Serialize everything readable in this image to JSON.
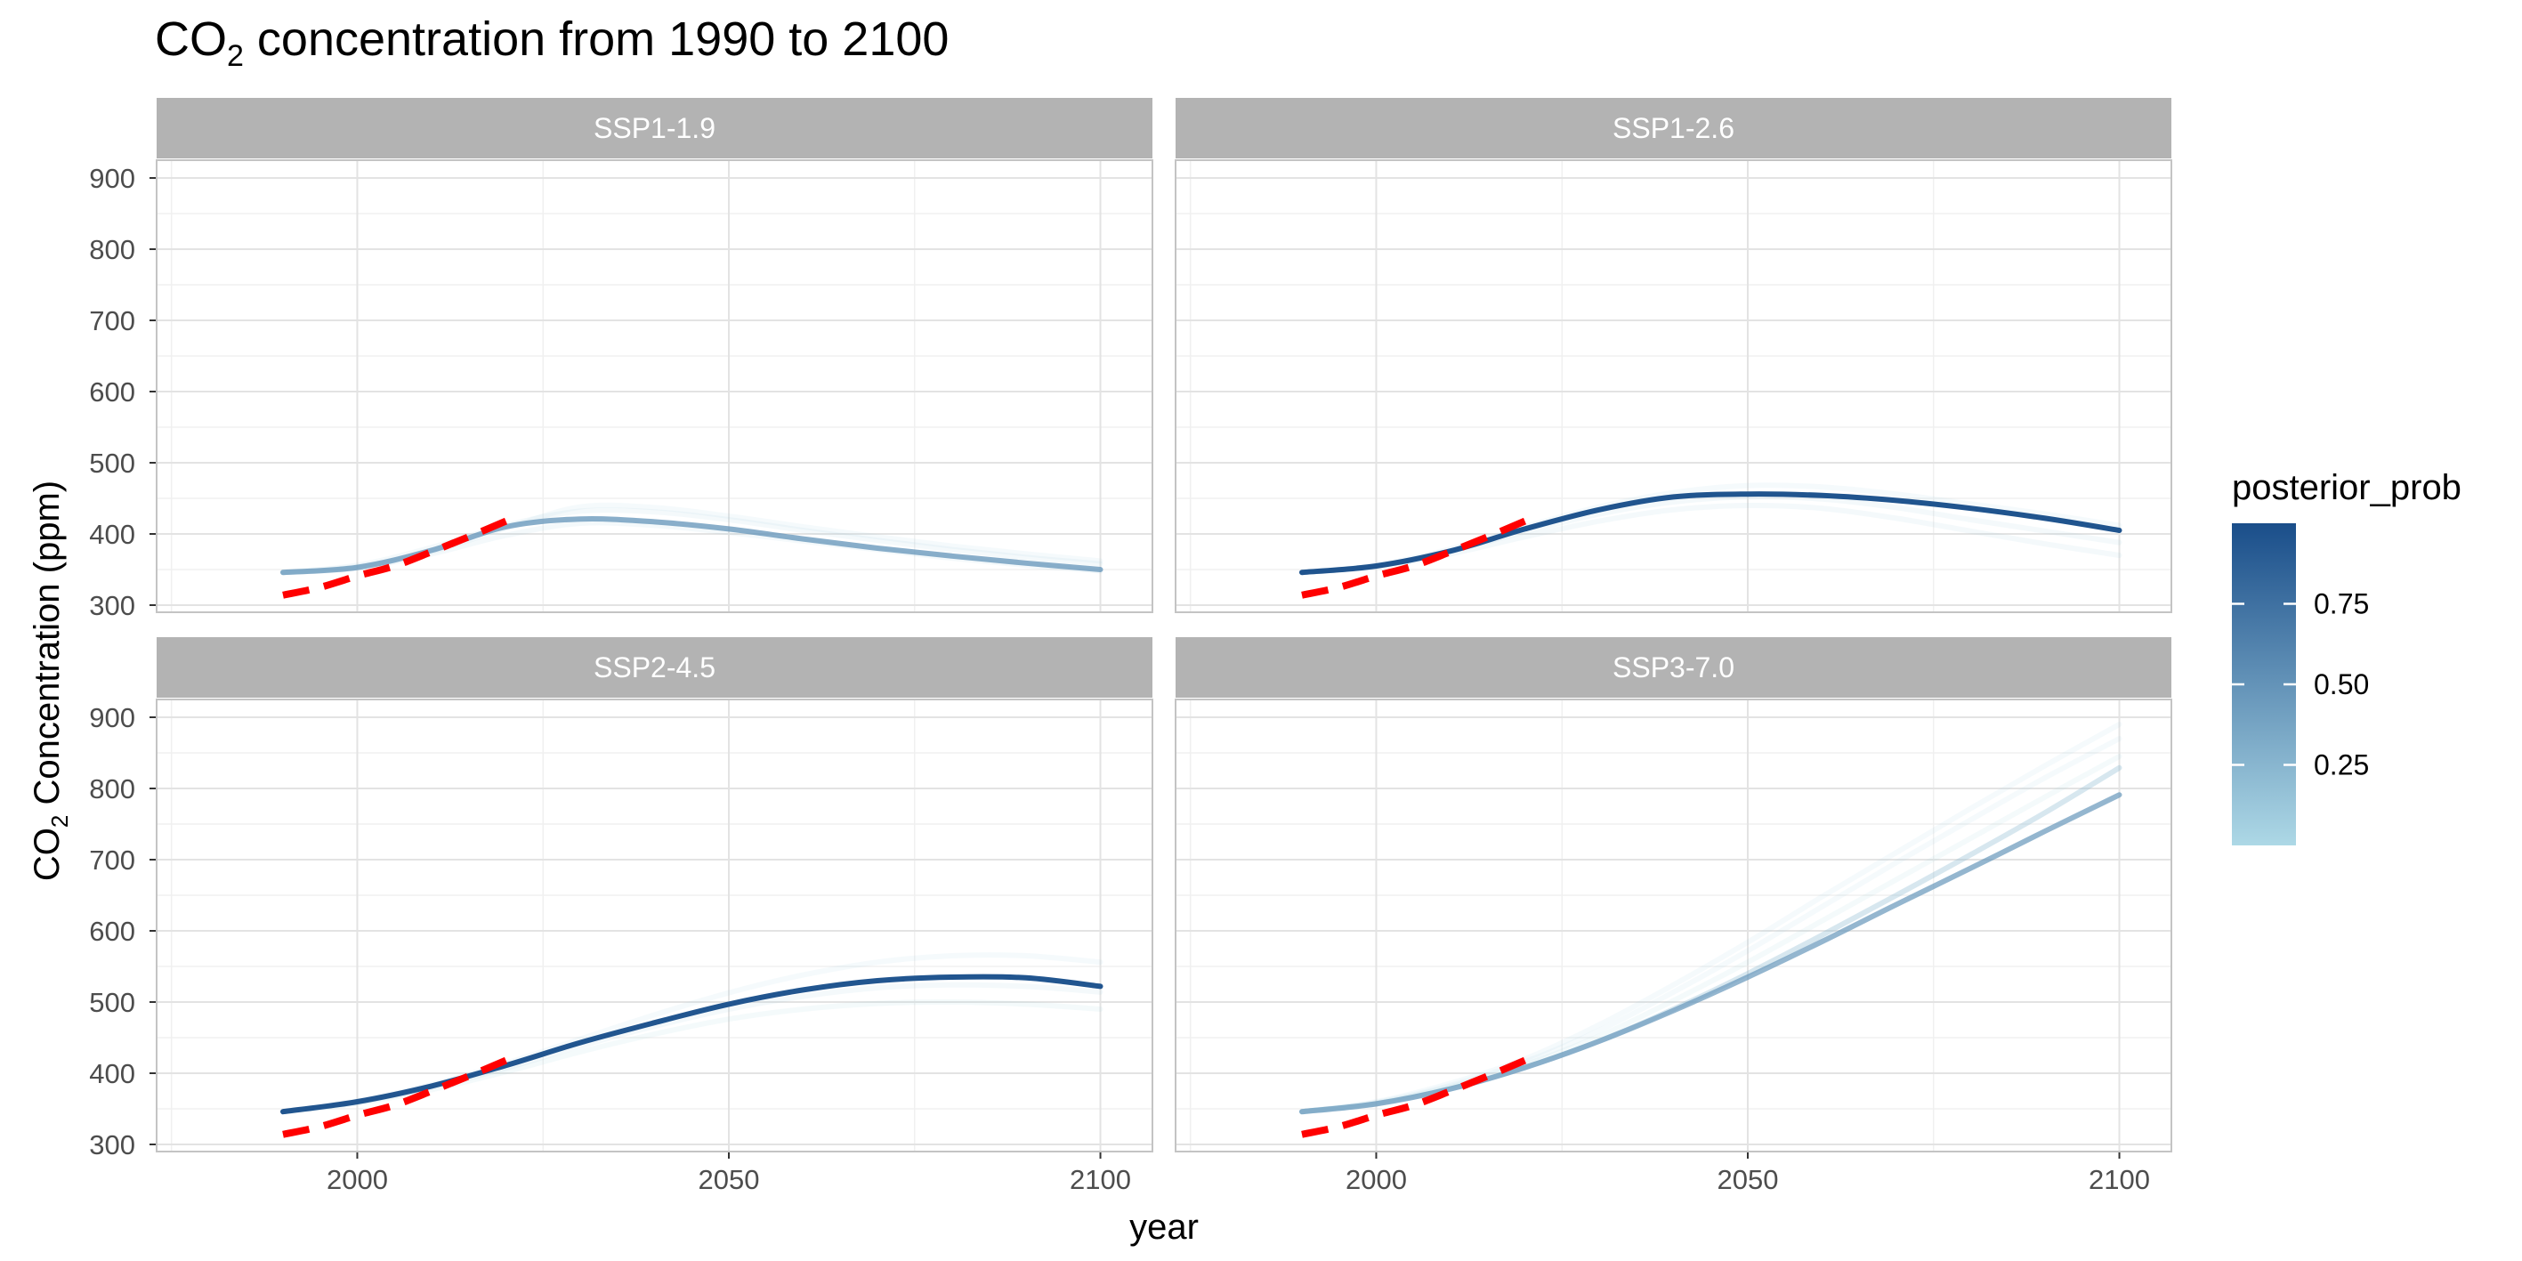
{
  "chart_data": {
    "type": "line",
    "title": {
      "prefix": "CO",
      "subscript": "2",
      "suffix": " concentration from 1990 to 2100"
    },
    "xlabel": "year",
    "ylabel": {
      "prefix": "CO",
      "subscript": "2",
      "suffix": " Concentration (ppm)"
    },
    "xlim": [
      1973,
      2107
    ],
    "ylim": [
      290,
      925
    ],
    "x_ticks": [
      2000,
      2050,
      2100
    ],
    "x_minor_ticks": [
      1975,
      2025,
      2075
    ],
    "y_ticks": [
      300,
      400,
      500,
      600,
      700,
      800,
      900
    ],
    "y_minor_ticks": [
      350,
      450,
      550,
      650,
      750,
      850
    ],
    "grid": true,
    "legend": {
      "title": "posterior_prob",
      "position": "right",
      "type": "colorbar",
      "range": [
        0.0,
        1.0
      ],
      "ticks": [
        0.25,
        0.5,
        0.75
      ],
      "tick_labels": [
        "0.25",
        "0.50",
        "0.75"
      ],
      "low_color": "#add8e6",
      "high_color": "#1a4e8a"
    },
    "observed_style": {
      "color": "#ff0000",
      "dash": "dashed"
    },
    "panels": [
      {
        "label": "SSP1-1.9",
        "observed": {
          "x": [
            1990,
            1995,
            2000,
            2005,
            2010,
            2015,
            2020
          ],
          "y": [
            314,
            325,
            341,
            355,
            375,
            396,
            418
          ]
        },
        "series": [
          {
            "posterior_prob": 0.03,
            "x": [
              1990,
              2000,
              2010,
              2020,
              2030,
              2040,
              2050,
              2060,
              2070,
              2080,
              2090,
              2100
            ],
            "y": [
              346,
              354,
              375,
              408,
              438,
              437,
              425,
              410,
              396,
              383,
              372,
              362
            ]
          },
          {
            "posterior_prob": 0.06,
            "x": [
              1990,
              2000,
              2010,
              2020,
              2030,
              2040,
              2050,
              2060,
              2070,
              2080,
              2090,
              2100
            ],
            "y": [
              346,
              356,
              381,
              412,
              432,
              431,
              420,
              405,
              391,
              378,
              367,
              358
            ]
          },
          {
            "posterior_prob": 0.06,
            "x": [
              1990,
              2000,
              2010,
              2020,
              2030,
              2040,
              2050,
              2060,
              2070,
              2080,
              2090,
              2100
            ],
            "y": [
              346,
              352,
              372,
              398,
              415,
              412,
              402,
              390,
              378,
              366,
              356,
              348
            ]
          },
          {
            "posterior_prob": 0.48,
            "x": [
              1990,
              2000,
              2010,
              2020,
              2030,
              2040,
              2050,
              2060,
              2070,
              2080,
              2090,
              2100
            ],
            "y": [
              346,
              353,
              377,
              410,
              421,
              417,
              407,
              393,
              380,
              369,
              359,
              350
            ]
          }
        ]
      },
      {
        "label": "SSP1-2.6",
        "observed": {
          "x": [
            1990,
            1995,
            2000,
            2005,
            2010,
            2015,
            2020
          ],
          "y": [
            314,
            325,
            341,
            355,
            375,
            396,
            418
          ]
        },
        "series": [
          {
            "posterior_prob": 0.03,
            "x": [
              1990,
              2000,
              2010,
              2020,
              2030,
              2040,
              2050,
              2060,
              2070,
              2080,
              2090,
              2100
            ],
            "y": [
              346,
              356,
              379,
              410,
              438,
              458,
              468,
              466,
              456,
              442,
              428,
              412
            ]
          },
          {
            "posterior_prob": 0.05,
            "x": [
              1990,
              2000,
              2010,
              2020,
              2030,
              2040,
              2050,
              2060,
              2070,
              2080,
              2090,
              2100
            ],
            "y": [
              346,
              354,
              372,
              396,
              418,
              434,
              440,
              436,
              422,
              404,
              386,
              370
            ]
          },
          {
            "posterior_prob": 0.06,
            "x": [
              1990,
              2000,
              2010,
              2020,
              2030,
              2040,
              2050,
              2060,
              2070,
              2080,
              2090,
              2100
            ],
            "y": [
              346,
              355,
              376,
              403,
              428,
              445,
              452,
              449,
              437,
              420,
              404,
              388
            ]
          },
          {
            "posterior_prob": 0.96,
            "x": [
              1990,
              2000,
              2010,
              2020,
              2030,
              2040,
              2050,
              2060,
              2070,
              2080,
              2090,
              2100
            ],
            "y": [
              346,
              355,
              376,
              407,
              434,
              452,
              456,
              454,
              447,
              436,
              422,
              405
            ]
          }
        ]
      },
      {
        "label": "SSP2-4.5",
        "observed": {
          "x": [
            1990,
            1995,
            2000,
            2005,
            2010,
            2015,
            2020
          ],
          "y": [
            314,
            325,
            341,
            355,
            375,
            396,
            418
          ]
        },
        "series": [
          {
            "posterior_prob": 0.03,
            "x": [
              1990,
              2000,
              2010,
              2020,
              2030,
              2040,
              2050,
              2060,
              2070,
              2080,
              2090,
              2100
            ],
            "y": [
              346,
              361,
              384,
              414,
              448,
              482,
              513,
              538,
              556,
              565,
              565,
              556
            ]
          },
          {
            "posterior_prob": 0.04,
            "x": [
              1990,
              2000,
              2010,
              2020,
              2030,
              2040,
              2050,
              2060,
              2070,
              2080,
              2090,
              2100
            ],
            "y": [
              346,
              358,
              377,
              402,
              430,
              455,
              476,
              490,
              498,
              500,
              497,
              490
            ]
          },
          {
            "posterior_prob": 0.05,
            "x": [
              1990,
              2000,
              2010,
              2020,
              2030,
              2040,
              2050,
              2060,
              2070,
              2080,
              2090,
              2100
            ],
            "y": [
              346,
              359,
              380,
              407,
              438,
              466,
              490,
              508,
              520,
              524,
              522,
              514
            ]
          },
          {
            "posterior_prob": 0.95,
            "x": [
              1990,
              2000,
              2010,
              2020,
              2030,
              2040,
              2050,
              2060,
              2070,
              2080,
              2090,
              2100
            ],
            "y": [
              346,
              360,
              382,
              411,
              443,
              471,
              497,
              517,
              530,
              535,
              534,
              522
            ]
          }
        ]
      },
      {
        "label": "SSP3-7.0",
        "observed": {
          "x": [
            1990,
            1995,
            2000,
            2005,
            2010,
            2015,
            2020
          ],
          "y": [
            314,
            325,
            341,
            355,
            375,
            396,
            418
          ]
        },
        "series": [
          {
            "posterior_prob": 0.03,
            "x": [
              1990,
              2000,
              2010,
              2020,
              2030,
              2040,
              2050,
              2060,
              2070,
              2080,
              2090,
              2100
            ],
            "y": [
              346,
              360,
              386,
              420,
              468,
              524,
              584,
              648,
              710,
              772,
              832,
              890
            ]
          },
          {
            "posterior_prob": 0.03,
            "x": [
              1990,
              2000,
              2010,
              2020,
              2030,
              2040,
              2050,
              2060,
              2070,
              2080,
              2090,
              2100
            ],
            "y": [
              346,
              359,
              383,
              416,
              460,
              514,
              572,
              634,
              696,
              756,
              815,
              870
            ]
          },
          {
            "posterior_prob": 0.04,
            "x": [
              1990,
              2000,
              2010,
              2020,
              2030,
              2040,
              2050,
              2060,
              2070,
              2080,
              2090,
              2100
            ],
            "y": [
              346,
              358,
              381,
              412,
              452,
              502,
              556,
              614,
              672,
              730,
              788,
              845
            ]
          },
          {
            "posterior_prob": 0.22,
            "x": [
              1990,
              2000,
              2010,
              2020,
              2030,
              2040,
              2050,
              2060,
              2070,
              2080,
              2090,
              2100
            ],
            "y": [
              346,
              357,
              378,
              408,
              445,
              490,
              540,
              594,
              650,
              707,
              766,
              829
            ]
          },
          {
            "posterior_prob": 0.45,
            "x": [
              1990,
              2000,
              2010,
              2020,
              2030,
              2040,
              2050,
              2060,
              2070,
              2080,
              2090,
              2100
            ],
            "y": [
              346,
              357,
              378,
              408,
              445,
              488,
              535,
              585,
              637,
              688,
              740,
              791
            ]
          }
        ]
      }
    ]
  }
}
